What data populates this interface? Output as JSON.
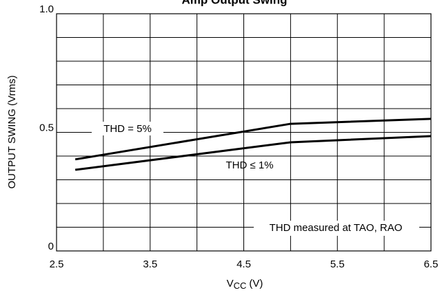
{
  "chart_data": {
    "type": "line",
    "title": "Amp Output Swing",
    "xlabel_main": "V",
    "xlabel_sub": "CC",
    "xlabel_unit": "(V)",
    "ylabel": "OUTPUT SWING (Vrms)",
    "xlim": [
      2.5,
      6.5
    ],
    "xticks": [
      2.5,
      3.5,
      4.5,
      5.5,
      6.5
    ],
    "minor_xticks": [
      3,
      4,
      5,
      6
    ],
    "ylim": [
      0,
      1
    ],
    "yticks": [
      0,
      0.5,
      {
        "value": 1,
        "label": "1.0"
      }
    ],
    "minor_yticks": [
      0.1,
      0.2,
      0.3,
      0.4,
      0.6,
      0.7,
      0.8,
      0.9
    ],
    "grid": true,
    "series": [
      {
        "name": "THD = 5%",
        "color": "#000000",
        "x": [
          2.7,
          5.0,
          6.5
        ],
        "values": [
          0.386,
          0.536,
          0.557
        ]
      },
      {
        "name": "THD ≤ 1%",
        "color": "#000000",
        "x": [
          2.7,
          5.0,
          6.5
        ],
        "values": [
          0.342,
          0.458,
          0.484
        ]
      }
    ],
    "annotation": "THD measured at TAO, RAO"
  }
}
